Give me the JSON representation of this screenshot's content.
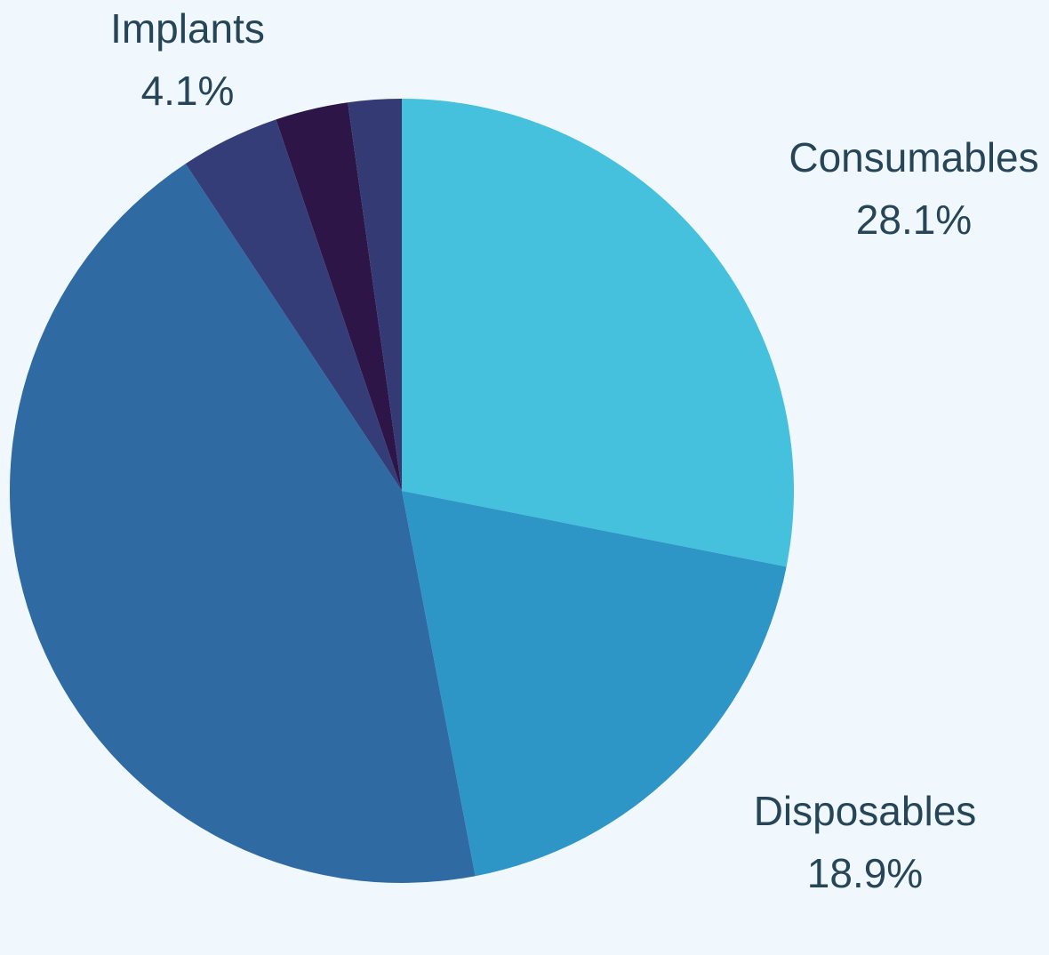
{
  "chart_data": {
    "type": "pie",
    "categories": [
      "Consumables",
      "Disposables",
      null,
      "Implants",
      null,
      null
    ],
    "values": [
      28.1,
      18.9,
      43.7,
      4.1,
      3.0,
      2.2
    ],
    "value_labels": [
      "28.1%",
      "18.9%",
      null,
      "4.1%",
      null,
      null
    ],
    "colors": [
      "#45c1dd",
      "#2d96c6",
      "#2f6aa3",
      "#353d78",
      "#2e1548",
      "#333a74"
    ]
  }
}
